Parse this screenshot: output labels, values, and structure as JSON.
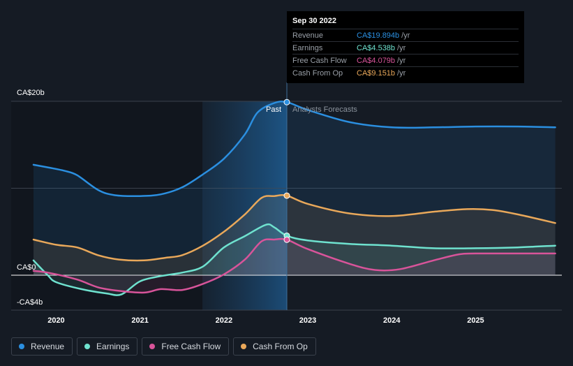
{
  "tooltip": {
    "date": "Sep 30 2022",
    "rows": [
      {
        "label": "Revenue",
        "value": "CA$19.894b",
        "unit": "/yr",
        "color": "#2b8fe0"
      },
      {
        "label": "Earnings",
        "value": "CA$4.538b",
        "unit": "/yr",
        "color": "#6fe2cf"
      },
      {
        "label": "Free Cash Flow",
        "value": "CA$4.079b",
        "unit": "/yr",
        "color": "#d8549a"
      },
      {
        "label": "Cash From Op",
        "value": "CA$9.151b",
        "unit": "/yr",
        "color": "#e9a85a"
      }
    ]
  },
  "legend": [
    {
      "label": "Revenue",
      "color": "#2b8fe0"
    },
    {
      "label": "Earnings",
      "color": "#6fe2cf"
    },
    {
      "label": "Free Cash Flow",
      "color": "#d8549a"
    },
    {
      "label": "Cash From Op",
      "color": "#e9a85a"
    }
  ],
  "chart_data": {
    "type": "line",
    "y_unit_label_top": "CA$20b",
    "y_unit_label_zero": "CA$0",
    "y_unit_label_bottom": "-CA$4b",
    "ylim": [
      -4,
      20
    ],
    "xlim": [
      2019.75,
      2025.95
    ],
    "x_ticks": [
      {
        "value": 2020,
        "label": "2020"
      },
      {
        "value": 2021,
        "label": "2021"
      },
      {
        "value": 2022,
        "label": "2022"
      },
      {
        "value": 2023,
        "label": "2023"
      },
      {
        "value": 2024,
        "label": "2024"
      },
      {
        "value": 2025,
        "label": "2025"
      }
    ],
    "divider_x": 2022.75,
    "past_label": "Past",
    "forecast_label": "Analysts Forecasts",
    "grid": true,
    "series": [
      {
        "name": "Revenue",
        "color": "#2b8fe0",
        "points": [
          [
            2019.73,
            12.7
          ],
          [
            2019.9,
            12.4
          ],
          [
            2020.1,
            12.0
          ],
          [
            2020.25,
            11.5
          ],
          [
            2020.5,
            9.8
          ],
          [
            2020.7,
            9.2
          ],
          [
            2021.0,
            9.1
          ],
          [
            2021.25,
            9.3
          ],
          [
            2021.5,
            10.1
          ],
          [
            2021.75,
            11.6
          ],
          [
            2022.0,
            13.4
          ],
          [
            2022.25,
            16.2
          ],
          [
            2022.4,
            18.7
          ],
          [
            2022.6,
            19.8
          ],
          [
            2022.75,
            19.9
          ],
          [
            2023.0,
            19.0
          ],
          [
            2023.5,
            17.6
          ],
          [
            2024.0,
            17.0
          ],
          [
            2024.5,
            17.0
          ],
          [
            2025.0,
            17.1
          ],
          [
            2025.5,
            17.1
          ],
          [
            2025.95,
            17.0
          ]
        ]
      },
      {
        "name": "Earnings",
        "color": "#6fe2cf",
        "points": [
          [
            2019.73,
            1.7
          ],
          [
            2019.9,
            0.0
          ],
          [
            2020.0,
            -0.8
          ],
          [
            2020.3,
            -1.6
          ],
          [
            2020.6,
            -2.1
          ],
          [
            2020.78,
            -2.2
          ],
          [
            2021.0,
            -0.7
          ],
          [
            2021.25,
            -0.1
          ],
          [
            2021.5,
            0.3
          ],
          [
            2021.75,
            1.0
          ],
          [
            2022.0,
            3.2
          ],
          [
            2022.25,
            4.5
          ],
          [
            2022.5,
            5.8
          ],
          [
            2022.6,
            5.5
          ],
          [
            2022.75,
            4.54
          ],
          [
            2023.0,
            4.0
          ],
          [
            2023.5,
            3.6
          ],
          [
            2024.0,
            3.4
          ],
          [
            2024.5,
            3.1
          ],
          [
            2025.0,
            3.1
          ],
          [
            2025.5,
            3.2
          ],
          [
            2025.95,
            3.4
          ]
        ]
      },
      {
        "name": "Free Cash Flow",
        "color": "#d8549a",
        "points": [
          [
            2019.73,
            0.5
          ],
          [
            2019.9,
            0.3
          ],
          [
            2020.25,
            -0.5
          ],
          [
            2020.5,
            -1.4
          ],
          [
            2020.75,
            -1.8
          ],
          [
            2021.05,
            -2.0
          ],
          [
            2021.25,
            -1.6
          ],
          [
            2021.5,
            -1.7
          ],
          [
            2021.75,
            -1.0
          ],
          [
            2022.0,
            0.1
          ],
          [
            2022.25,
            1.8
          ],
          [
            2022.45,
            3.9
          ],
          [
            2022.6,
            4.1
          ],
          [
            2022.75,
            4.08
          ],
          [
            2023.0,
            3.0
          ],
          [
            2023.5,
            1.3
          ],
          [
            2023.8,
            0.6
          ],
          [
            2024.1,
            0.7
          ],
          [
            2024.5,
            1.7
          ],
          [
            2024.8,
            2.4
          ],
          [
            2025.0,
            2.5
          ],
          [
            2025.5,
            2.5
          ],
          [
            2025.95,
            2.5
          ]
        ]
      },
      {
        "name": "Cash From Op",
        "color": "#e9a85a",
        "points": [
          [
            2019.73,
            4.1
          ],
          [
            2020.0,
            3.5
          ],
          [
            2020.25,
            3.2
          ],
          [
            2020.5,
            2.3
          ],
          [
            2020.75,
            1.8
          ],
          [
            2021.05,
            1.7
          ],
          [
            2021.3,
            2.0
          ],
          [
            2021.5,
            2.3
          ],
          [
            2021.75,
            3.4
          ],
          [
            2022.0,
            5.0
          ],
          [
            2022.25,
            7.0
          ],
          [
            2022.45,
            8.9
          ],
          [
            2022.6,
            9.1
          ],
          [
            2022.75,
            9.15
          ],
          [
            2023.0,
            8.2
          ],
          [
            2023.5,
            7.1
          ],
          [
            2024.0,
            6.8
          ],
          [
            2024.5,
            7.3
          ],
          [
            2024.9,
            7.6
          ],
          [
            2025.2,
            7.5
          ],
          [
            2025.5,
            7.0
          ],
          [
            2025.95,
            6.0
          ]
        ]
      }
    ]
  }
}
